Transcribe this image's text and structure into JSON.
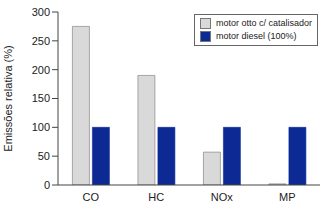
{
  "chart_data": {
    "type": "bar",
    "categories": [
      "CO",
      "HC",
      "NOx",
      "MP"
    ],
    "series": [
      {
        "name": "motor otto c/ catalisador",
        "color": "#d9d9d9",
        "values": [
          275,
          190,
          57,
          2
        ]
      },
      {
        "name": "motor diesel (100%)",
        "color": "#0d2a94",
        "values": [
          100,
          100,
          100,
          100
        ]
      }
    ],
    "y_label": "Emissões relativa (%)",
    "ylim": [
      0,
      300
    ],
    "yticks": [
      0,
      50,
      100,
      150,
      200,
      250,
      300
    ],
    "grid": false,
    "legend": "upper right"
  }
}
